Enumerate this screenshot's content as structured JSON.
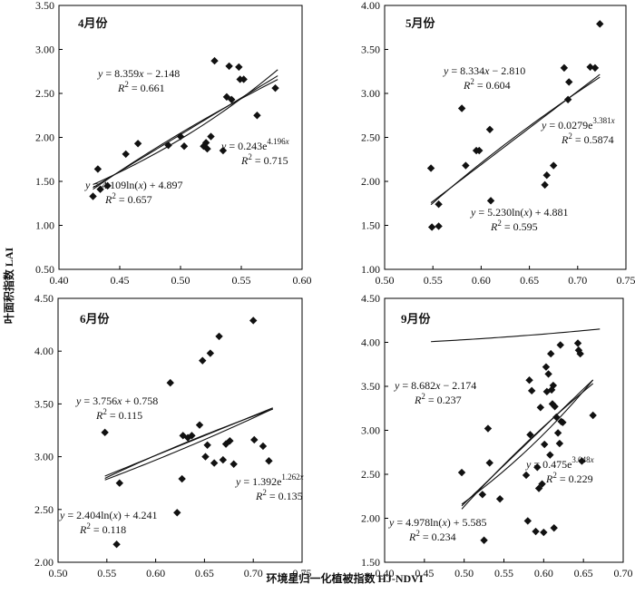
{
  "figure": {
    "xlabel": "环境星归一化植被指数 HJ-NDVI",
    "ylabel": "叶面积指数 LAI"
  },
  "chart_data": [
    {
      "type": "scatter",
      "title": "4月份",
      "xlim": [
        0.4,
        0.6
      ],
      "ylim": [
        0.5,
        3.5
      ],
      "xticks": [
        "0.40",
        "0.45",
        "0.50",
        "0.55",
        "0.60"
      ],
      "yticks": [
        "0.50",
        "1.00",
        "1.50",
        "2.00",
        "2.50",
        "3.00",
        "3.50"
      ],
      "points": [
        [
          0.428,
          1.33
        ],
        [
          0.432,
          1.64
        ],
        [
          0.434,
          1.41
        ],
        [
          0.44,
          1.45
        ],
        [
          0.455,
          1.81
        ],
        [
          0.465,
          1.93
        ],
        [
          0.49,
          1.91
        ],
        [
          0.5,
          2.01
        ],
        [
          0.503,
          1.9
        ],
        [
          0.519,
          1.9
        ],
        [
          0.521,
          1.94
        ],
        [
          0.522,
          1.87
        ],
        [
          0.525,
          2.01
        ],
        [
          0.528,
          2.87
        ],
        [
          0.535,
          1.85
        ],
        [
          0.538,
          2.46
        ],
        [
          0.54,
          2.81
        ],
        [
          0.542,
          2.43
        ],
        [
          0.548,
          2.8
        ],
        [
          0.549,
          2.66
        ],
        [
          0.552,
          2.66
        ],
        [
          0.563,
          2.25
        ],
        [
          0.578,
          2.56
        ]
      ],
      "fits": [
        {
          "kind": "linear",
          "a": 8.359,
          "b": -2.148
        },
        {
          "kind": "exp",
          "a": 0.243,
          "b": 4.196
        },
        {
          "kind": "log",
          "a": 4.109,
          "b": 4.897
        }
      ],
      "x_range": [
        0.428,
        0.58
      ],
      "annotations": [
        {
          "eq": "y = 8.359x − 2.148",
          "r2": "R² = 0.661"
        },
        {
          "eq": "y = 0.243e^4.196x",
          "r2": "R² = 0.715"
        },
        {
          "eq": "y = 4.109ln(x) + 4.897",
          "r2": "R² = 0.657"
        }
      ]
    },
    {
      "type": "scatter",
      "title": "5月份",
      "xlim": [
        0.5,
        0.75
      ],
      "ylim": [
        1.0,
        4.0
      ],
      "xticks": [
        "0.50",
        "0.55",
        "0.60",
        "0.65",
        "0.70",
        "0.75"
      ],
      "yticks": [
        "1.00",
        "1.50",
        "2.00",
        "2.50",
        "3.00",
        "3.50",
        "4.00"
      ],
      "points": [
        [
          0.548,
          2.15
        ],
        [
          0.549,
          1.48
        ],
        [
          0.556,
          1.49
        ],
        [
          0.556,
          1.74
        ],
        [
          0.58,
          2.83
        ],
        [
          0.584,
          2.18
        ],
        [
          0.595,
          2.35
        ],
        [
          0.598,
          2.35
        ],
        [
          0.609,
          2.59
        ],
        [
          0.61,
          1.78
        ],
        [
          0.666,
          1.96
        ],
        [
          0.668,
          2.07
        ],
        [
          0.675,
          2.18
        ],
        [
          0.686,
          3.29
        ],
        [
          0.69,
          2.93
        ],
        [
          0.691,
          3.13
        ],
        [
          0.713,
          3.3
        ],
        [
          0.718,
          3.29
        ],
        [
          0.723,
          3.79
        ]
      ],
      "fits": [
        {
          "kind": "linear",
          "a": 8.334,
          "b": -2.81
        },
        {
          "kind": "exp",
          "a": 0.0279,
          "b": 3.381
        },
        {
          "kind": "log",
          "a": 5.23,
          "b": 4.881
        }
      ],
      "x_range": [
        0.548,
        0.723
      ],
      "annotations": [
        {
          "eq": "y = 8.334x − 2.810",
          "r2": "R² = 0.604"
        },
        {
          "eq": "y = 0.0279e^3.381x",
          "r2": "R² = 0.5874"
        },
        {
          "eq": "y = 5.230ln(x) + 4.881",
          "r2": "R² = 0.595"
        }
      ]
    },
    {
      "type": "scatter",
      "title": "6月份",
      "xlim": [
        0.5,
        0.75
      ],
      "ylim": [
        2.0,
        4.5
      ],
      "xticks": [
        "0.50",
        "0.55",
        "0.60",
        "0.65",
        "0.70",
        "0.75"
      ],
      "yticks": [
        "2.00",
        "2.50",
        "3.00",
        "3.50",
        "4.00",
        "4.50"
      ],
      "points": [
        [
          0.548,
          3.23
        ],
        [
          0.56,
          2.17
        ],
        [
          0.563,
          2.75
        ],
        [
          0.615,
          3.7
        ],
        [
          0.622,
          2.47
        ],
        [
          0.627,
          2.79
        ],
        [
          0.628,
          3.2
        ],
        [
          0.633,
          3.18
        ],
        [
          0.637,
          3.2
        ],
        [
          0.645,
          3.3
        ],
        [
          0.648,
          3.91
        ],
        [
          0.651,
          3.0
        ],
        [
          0.653,
          3.11
        ],
        [
          0.656,
          3.98
        ],
        [
          0.66,
          2.94
        ],
        [
          0.665,
          4.14
        ],
        [
          0.669,
          2.97
        ],
        [
          0.672,
          3.12
        ],
        [
          0.676,
          3.15
        ],
        [
          0.68,
          2.93
        ],
        [
          0.7,
          4.29
        ],
        [
          0.701,
          3.16
        ],
        [
          0.71,
          3.1
        ],
        [
          0.716,
          2.96
        ]
      ],
      "fits": [
        {
          "kind": "linear",
          "a": 3.756,
          "b": 0.758
        },
        {
          "kind": "exp",
          "a": 1.392,
          "b": 1.262
        },
        {
          "kind": "log",
          "a": 2.404,
          "b": 4.241
        }
      ],
      "x_range": [
        0.548,
        0.72
      ],
      "annotations": [
        {
          "eq": "y = 3.756x + 0.758",
          "r2": "R² = 0.115"
        },
        {
          "eq": "y = 1.392e^1.262x",
          "r2": "R² = 0.135"
        },
        {
          "eq": "y = 2.404ln(x) + 4.241",
          "r2": "R² = 0.118"
        }
      ]
    },
    {
      "type": "scatter",
      "title": "9月份",
      "xlim": [
        0.4,
        0.7
      ],
      "ylim": [
        1.5,
        4.5
      ],
      "xticks": [
        "0.40",
        "0.45",
        "0.50",
        "0.55",
        "0.60",
        "0.65",
        "0.70"
      ],
      "yticks": [
        "1.50",
        "2.00",
        "2.50",
        "3.00",
        "3.50",
        "4.00",
        "4.50"
      ],
      "points": [
        [
          0.497,
          2.52
        ],
        [
          0.523,
          2.27
        ],
        [
          0.525,
          1.75
        ],
        [
          0.53,
          3.02
        ],
        [
          0.532,
          2.63
        ],
        [
          0.545,
          2.22
        ],
        [
          0.578,
          2.49
        ],
        [
          0.58,
          1.97
        ],
        [
          0.582,
          3.57
        ],
        [
          0.583,
          2.95
        ],
        [
          0.585,
          3.45
        ],
        [
          0.59,
          1.85
        ],
        [
          0.592,
          2.58
        ],
        [
          0.594,
          2.34
        ],
        [
          0.596,
          3.26
        ],
        [
          0.598,
          2.39
        ],
        [
          0.6,
          1.84
        ],
        [
          0.601,
          2.84
        ],
        [
          0.603,
          3.72
        ],
        [
          0.604,
          3.44
        ],
        [
          0.606,
          3.64
        ],
        [
          0.608,
          2.72
        ],
        [
          0.609,
          3.87
        ],
        [
          0.61,
          3.46
        ],
        [
          0.611,
          3.3
        ],
        [
          0.612,
          3.51
        ],
        [
          0.613,
          1.89
        ],
        [
          0.614,
          3.27
        ],
        [
          0.616,
          3.15
        ],
        [
          0.618,
          2.97
        ],
        [
          0.62,
          2.85
        ],
        [
          0.621,
          3.97
        ],
        [
          0.622,
          3.1
        ],
        [
          0.624,
          3.09
        ],
        [
          0.643,
          3.99
        ],
        [
          0.644,
          3.91
        ],
        [
          0.646,
          3.87
        ],
        [
          0.648,
          2.65
        ],
        [
          0.662,
          3.17
        ]
      ],
      "fits": [
        {
          "kind": "linear",
          "a": 8.682,
          "b": -2.174
        },
        {
          "kind": "exp",
          "a": 0.475,
          "b": 3.048
        },
        {
          "kind": "log",
          "a": 4.978,
          "b": 5.585
        }
      ],
      "x_range": [
        0.497,
        0.662
      ],
      "annotations": [
        {
          "eq": "y = 8.682x − 2.174",
          "r2": "R² = 0.237"
        },
        {
          "eq": "y = 0.475e^3.048x",
          "r2": "R² = 0.229"
        },
        {
          "eq": "y = 4.978ln(x) + 5.585",
          "r2": "R² = 0.234"
        }
      ]
    }
  ]
}
